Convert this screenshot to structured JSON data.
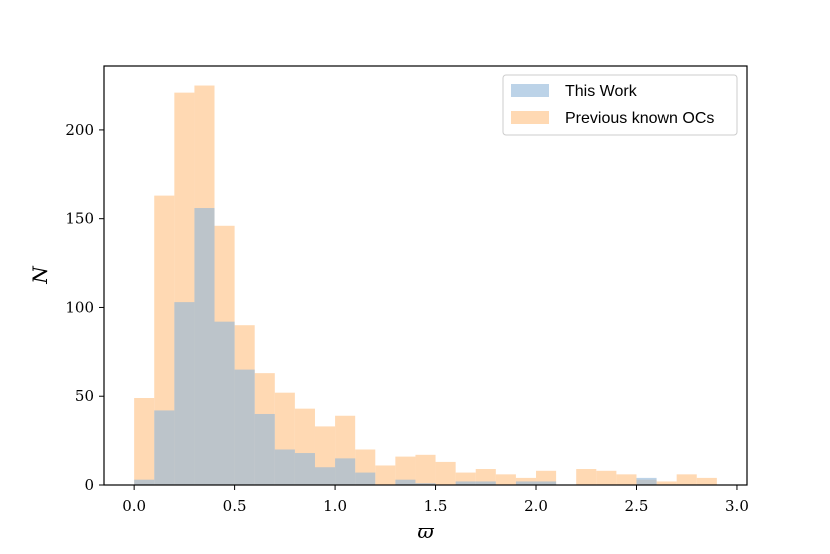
{
  "chart_data": {
    "type": "bar",
    "subtype": "overlapping-histogram",
    "title": "",
    "xlabel": "ϖ",
    "ylabel": "N",
    "xlim": [
      -0.15,
      3.05
    ],
    "ylim": [
      0,
      236
    ],
    "bin_width": 0.1,
    "bin_left_edges": [
      0.0,
      0.1,
      0.2,
      0.3,
      0.4,
      0.5,
      0.6,
      0.7,
      0.8,
      0.9,
      1.0,
      1.1,
      1.2,
      1.3,
      1.4,
      1.5,
      1.6,
      1.7,
      1.8,
      1.9,
      2.0,
      2.1,
      2.2,
      2.3,
      2.4,
      2.5,
      2.6,
      2.7,
      2.8
    ],
    "x_ticks": [
      {
        "value": 0.0,
        "label": "0.0"
      },
      {
        "value": 0.5,
        "label": "0.5"
      },
      {
        "value": 1.0,
        "label": "1.0"
      },
      {
        "value": 1.5,
        "label": "1.5"
      },
      {
        "value": 2.0,
        "label": "2.0"
      },
      {
        "value": 2.5,
        "label": "2.5"
      },
      {
        "value": 3.0,
        "label": "3.0"
      }
    ],
    "y_ticks": [
      {
        "value": 0,
        "label": "0"
      },
      {
        "value": 50,
        "label": "50"
      },
      {
        "value": 100,
        "label": "100"
      },
      {
        "value": 150,
        "label": "150"
      },
      {
        "value": 200,
        "label": "200"
      }
    ],
    "grid": false,
    "legend_position": "top-right",
    "series": [
      {
        "name": "Previous known OCs",
        "color": "#ffcc99",
        "opacity": 0.75,
        "values": [
          49,
          163,
          221,
          225,
          146,
          90,
          63,
          52,
          43,
          33,
          39,
          20,
          11,
          16,
          17,
          13,
          7,
          9,
          6,
          4,
          8,
          0,
          9,
          8,
          6,
          3,
          2,
          6,
          4
        ]
      },
      {
        "name": "This Work",
        "color": "#8fb5d9",
        "opacity": 0.6,
        "values": [
          3,
          42,
          103,
          156,
          92,
          65,
          40,
          20,
          18,
          10,
          15,
          7,
          0,
          3,
          1,
          0,
          2,
          2,
          0,
          2,
          2,
          0,
          0,
          0,
          0,
          4,
          0,
          0,
          0
        ]
      }
    ]
  }
}
